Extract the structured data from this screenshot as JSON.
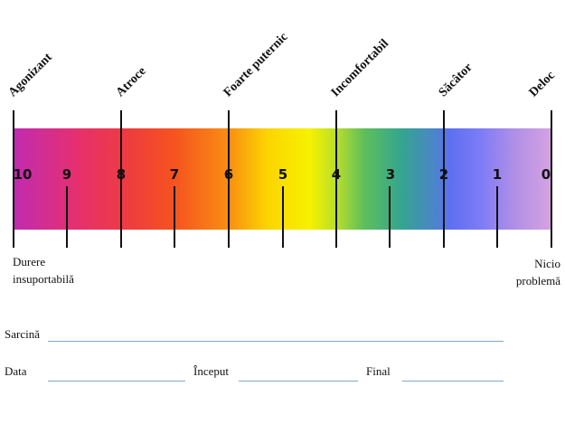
{
  "scale": {
    "top_labels": [
      "Agonizant",
      "Atroce",
      "Foarte puternic",
      "Incomfortabil",
      "Săcâtor",
      "Deloc"
    ],
    "numbers": [
      "10",
      "9",
      "8",
      "7",
      "6",
      "5",
      "4",
      "3",
      "2",
      "1",
      "0"
    ],
    "left_end": [
      "Durere",
      "insuportabilă"
    ],
    "right_end": [
      "Nicio",
      "problemă"
    ]
  },
  "form": {
    "task_label": "Sarcină",
    "date_label": "Data",
    "start_label": "Început",
    "end_label": "Final"
  }
}
